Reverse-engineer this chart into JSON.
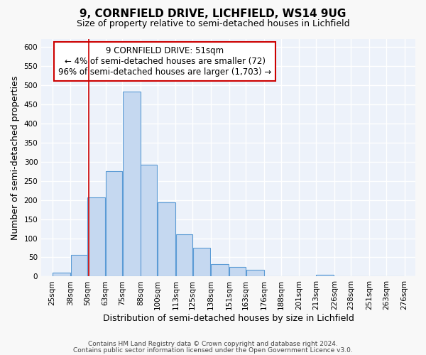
{
  "title": "9, CORNFIELD DRIVE, LICHFIELD, WS14 9UG",
  "subtitle": "Size of property relative to semi-detached houses in Lichfield",
  "xlabel": "Distribution of semi-detached houses by size in Lichfield",
  "ylabel": "Number of semi-detached properties",
  "bar_heights": [
    10,
    57,
    207,
    275,
    483,
    292,
    193,
    111,
    75,
    32,
    25,
    17,
    0,
    0,
    0,
    5,
    0,
    0,
    0,
    0
  ],
  "bin_labels": [
    "25sqm",
    "38sqm",
    "50sqm",
    "63sqm",
    "75sqm",
    "88sqm",
    "100sqm",
    "113sqm",
    "125sqm",
    "138sqm",
    "151sqm",
    "163sqm",
    "176sqm",
    "188sqm",
    "201sqm",
    "213sqm",
    "226sqm",
    "238sqm",
    "251sqm",
    "263sqm",
    "276sqm"
  ],
  "bin_edges": [
    25,
    38,
    50,
    63,
    75,
    88,
    100,
    113,
    125,
    138,
    151,
    163,
    176,
    188,
    201,
    213,
    226,
    238,
    251,
    263,
    276
  ],
  "bar_color": "#c5d8f0",
  "bar_edge_color": "#5b9bd5",
  "red_line_x": 51,
  "annotation_title": "9 CORNFIELD DRIVE: 51sqm",
  "annotation_line1": "← 4% of semi-detached houses are smaller (72)",
  "annotation_line2": "96% of semi-detached houses are larger (1,703) →",
  "annotation_box_color": "#ffffff",
  "annotation_box_edge": "#cc0000",
  "red_line_color": "#cc0000",
  "ylim": [
    0,
    620
  ],
  "yticks": [
    0,
    50,
    100,
    150,
    200,
    250,
    300,
    350,
    400,
    450,
    500,
    550,
    600
  ],
  "footer1": "Contains HM Land Registry data © Crown copyright and database right 2024.",
  "footer2": "Contains public sector information licensed under the Open Government Licence v3.0.",
  "background_color": "#edf2fa",
  "grid_color": "#ffffff",
  "title_fontsize": 11,
  "subtitle_fontsize": 9,
  "axis_label_fontsize": 9,
  "tick_fontsize": 7.5,
  "annotation_fontsize": 8.5,
  "footer_fontsize": 6.5
}
